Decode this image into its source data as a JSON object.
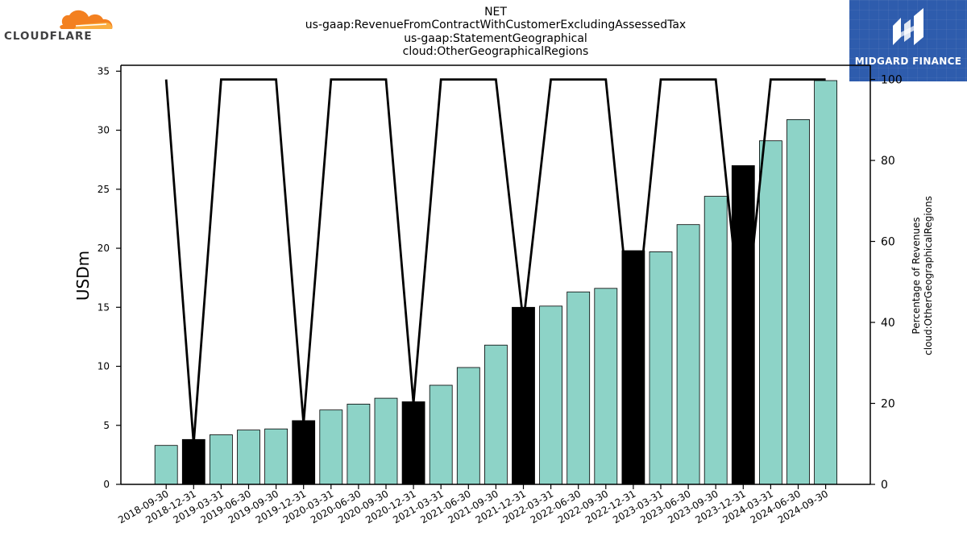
{
  "title_lines": [
    "NET",
    "us-gaap:RevenueFromContractWithCustomerExcludingAssessedTax",
    "us-gaap:StatementGeographical",
    "cloud:OtherGeographicalRegions"
  ],
  "logos": {
    "left": {
      "text": "CLOUDFLARE",
      "icon": "cloud-icon",
      "color": "#f38020"
    },
    "right": {
      "text": "MIDGARD FINANCE",
      "icon": "midgard-logo-icon",
      "color": "#2e5cad"
    }
  },
  "chart_data": {
    "type": "bar",
    "categories": [
      "2018-09-30",
      "2018-12-31",
      "2019-03-31",
      "2019-06-30",
      "2019-09-30",
      "2019-12-31",
      "2020-03-31",
      "2020-06-30",
      "2020-09-30",
      "2020-12-31",
      "2021-03-31",
      "2021-06-30",
      "2021-09-30",
      "2021-12-31",
      "2022-03-31",
      "2022-06-30",
      "2022-09-30",
      "2022-12-31",
      "2023-03-31",
      "2023-06-30",
      "2023-09-30",
      "2023-12-31",
      "2024-03-31",
      "2024-06-30",
      "2024-09-30"
    ],
    "values": [
      3.3,
      3.8,
      4.2,
      4.6,
      4.7,
      5.4,
      6.3,
      6.8,
      7.3,
      7.0,
      8.4,
      9.9,
      11.8,
      15.0,
      15.1,
      16.3,
      16.6,
      19.8,
      19.7,
      22.0,
      24.4,
      27.0,
      29.1,
      30.9,
      34.2
    ],
    "highlight": [
      false,
      true,
      false,
      false,
      false,
      true,
      false,
      false,
      false,
      true,
      false,
      false,
      false,
      true,
      false,
      false,
      false,
      true,
      false,
      false,
      false,
      true,
      false,
      false,
      false
    ],
    "bar_color": "#8dd3c7",
    "highlight_color": "#000000",
    "ylabel": "USDm",
    "ylim": [
      0,
      35.5
    ],
    "yticks": [
      0,
      5,
      10,
      15,
      20,
      25,
      30,
      35
    ],
    "secondary": {
      "type": "line",
      "ylabel_lines": [
        "Percentage of Revenues",
        "cloud:OtherGeographicalRegions"
      ],
      "values": [
        100,
        10,
        100,
        100,
        100,
        15,
        100,
        100,
        100,
        20,
        100,
        100,
        100,
        40,
        100,
        100,
        100,
        33,
        100,
        100,
        100,
        35,
        100,
        100,
        100
      ],
      "ylim": [
        0,
        103.5
      ],
      "yticks": [
        0,
        20,
        40,
        60,
        80,
        100
      ],
      "color": "#000000"
    },
    "grid": false
  }
}
